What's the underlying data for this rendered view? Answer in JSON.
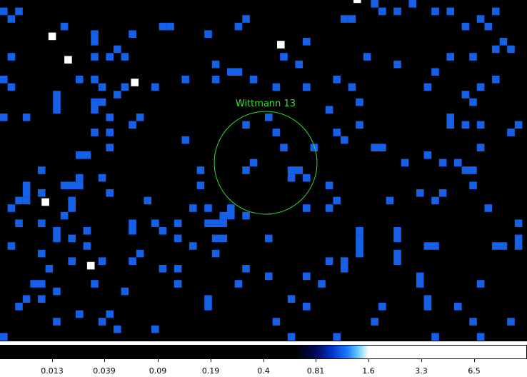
{
  "region_label": "Wittmann 13",
  "colors": {
    "pixel_blue": "#1560e6",
    "pixel_white": "#ffffff",
    "region_green": "#33dd33",
    "background": "#000000"
  },
  "colorbar": {
    "ticks": [
      "0.013",
      "0.039",
      "0.09",
      "0.19",
      "0.4",
      "0.81",
      "1.6",
      "3.3",
      "6.5"
    ]
  }
}
